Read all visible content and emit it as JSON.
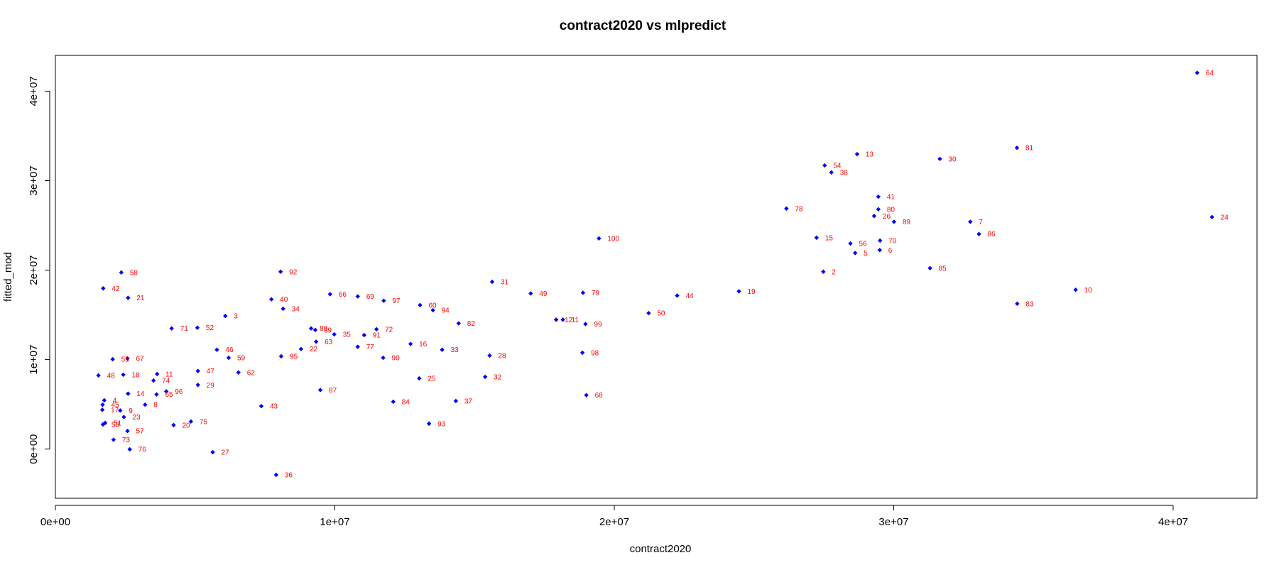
{
  "chart_data": {
    "type": "scatter",
    "title": "contract2020 vs mlpredict",
    "xlabel": "contract2020",
    "ylabel": "fitted_mod",
    "xlim": [
      0,
      43000000
    ],
    "ylim": [
      -5500000,
      44000000
    ],
    "x_ticks": [
      0,
      10000000,
      20000000,
      30000000,
      40000000
    ],
    "x_tick_labels": [
      "0e+00",
      "1e+07",
      "2e+07",
      "3e+07",
      "4e+07"
    ],
    "y_ticks": [
      0,
      10000000,
      20000000,
      30000000,
      40000000
    ],
    "y_tick_labels": [
      "0e+00",
      "1e+07",
      "2e+07",
      "3e+07",
      "4e+07"
    ],
    "grid": false,
    "point_color": "#0000ff",
    "label_color": "#ff0000",
    "points": [
      {
        "label": "64",
        "x": 40860000,
        "y": 42050000
      },
      {
        "label": "13",
        "x": 28690000,
        "y": 32960000
      },
      {
        "label": "81",
        "x": 34410000,
        "y": 33670000
      },
      {
        "label": "30",
        "x": 31650000,
        "y": 32430000
      },
      {
        "label": "54",
        "x": 27530000,
        "y": 31700000
      },
      {
        "label": "38",
        "x": 27770000,
        "y": 30920000
      },
      {
        "label": "41",
        "x": 29450000,
        "y": 28200000
      },
      {
        "label": "78",
        "x": 26160000,
        "y": 26880000
      },
      {
        "label": "80",
        "x": 29450000,
        "y": 26800000
      },
      {
        "label": "26",
        "x": 29300000,
        "y": 26050000
      },
      {
        "label": "89",
        "x": 30010000,
        "y": 25400000
      },
      {
        "label": "7",
        "x": 32740000,
        "y": 25400000
      },
      {
        "label": "24",
        "x": 41390000,
        "y": 25930000
      },
      {
        "label": "86",
        "x": 33050000,
        "y": 24030000
      },
      {
        "label": "15",
        "x": 27240000,
        "y": 23620000
      },
      {
        "label": "100",
        "x": 19450000,
        "y": 23540000
      },
      {
        "label": "70",
        "x": 29510000,
        "y": 23300000
      },
      {
        "label": "56",
        "x": 28450000,
        "y": 22970000
      },
      {
        "label": "6",
        "x": 29500000,
        "y": 22240000
      },
      {
        "label": "5",
        "x": 28620000,
        "y": 21910000
      },
      {
        "label": "85",
        "x": 31300000,
        "y": 20220000
      },
      {
        "label": "2",
        "x": 27480000,
        "y": 19820000
      },
      {
        "label": "58",
        "x": 2360000,
        "y": 19740000
      },
      {
        "label": "92",
        "x": 8060000,
        "y": 19820000
      },
      {
        "label": "31",
        "x": 15630000,
        "y": 18690000
      },
      {
        "label": "42",
        "x": 1710000,
        "y": 17960000
      },
      {
        "label": "10",
        "x": 36510000,
        "y": 17800000
      },
      {
        "label": "49",
        "x": 17010000,
        "y": 17390000
      },
      {
        "label": "79",
        "x": 18880000,
        "y": 17470000
      },
      {
        "label": "19",
        "x": 24460000,
        "y": 17630000
      },
      {
        "label": "66",
        "x": 9830000,
        "y": 17310000
      },
      {
        "label": "69",
        "x": 10820000,
        "y": 17060000
      },
      {
        "label": "44",
        "x": 22250000,
        "y": 17150000
      },
      {
        "label": "21",
        "x": 2600000,
        "y": 16900000
      },
      {
        "label": "40",
        "x": 7730000,
        "y": 16740000
      },
      {
        "label": "97",
        "x": 11750000,
        "y": 16580000
      },
      {
        "label": "60",
        "x": 13050000,
        "y": 16090000
      },
      {
        "label": "83",
        "x": 34420000,
        "y": 16250000
      },
      {
        "label": "34",
        "x": 8150000,
        "y": 15680000
      },
      {
        "label": "94",
        "x": 13510000,
        "y": 15520000
      },
      {
        "label": "50",
        "x": 21230000,
        "y": 15190000
      },
      {
        "label": "3",
        "x": 6080000,
        "y": 14870000
      },
      {
        "label": "12",
        "x": 17920000,
        "y": 14460000
      },
      {
        "label": "11",
        "x": 18160000,
        "y": 14460000
      },
      {
        "label": "82",
        "x": 14430000,
        "y": 14050000
      },
      {
        "label": "99",
        "x": 18970000,
        "y": 13970000
      },
      {
        "label": "71",
        "x": 4160000,
        "y": 13480000
      },
      {
        "label": "52",
        "x": 5080000,
        "y": 13560000
      },
      {
        "label": "88",
        "x": 9150000,
        "y": 13480000
      },
      {
        "label": "39",
        "x": 9300000,
        "y": 13310000
      },
      {
        "label": "72",
        "x": 11490000,
        "y": 13390000
      },
      {
        "label": "35",
        "x": 9980000,
        "y": 12820000
      },
      {
        "label": "91",
        "x": 11050000,
        "y": 12740000
      },
      {
        "label": "63",
        "x": 9330000,
        "y": 12000000
      },
      {
        "label": "16",
        "x": 12710000,
        "y": 11750000
      },
      {
        "label": "77",
        "x": 10820000,
        "y": 11430000
      },
      {
        "label": "22",
        "x": 8790000,
        "y": 11180000
      },
      {
        "label": "46",
        "x": 5780000,
        "y": 11100000
      },
      {
        "label": "33",
        "x": 13840000,
        "y": 11100000
      },
      {
        "label": "98",
        "x": 18860000,
        "y": 10770000
      },
      {
        "label": "28",
        "x": 15540000,
        "y": 10450000
      },
      {
        "label": "95",
        "x": 8080000,
        "y": 10370000
      },
      {
        "label": "90",
        "x": 11730000,
        "y": 10200000
      },
      {
        "label": "59",
        "x": 6200000,
        "y": 10200000
      },
      {
        "label": "55",
        "x": 2050000,
        "y": 10040000
      },
      {
        "label": "67",
        "x": 2580000,
        "y": 10120000
      },
      {
        "label": "47",
        "x": 5100000,
        "y": 8720000
      },
      {
        "label": "62",
        "x": 6550000,
        "y": 8560000
      },
      {
        "label": "11",
        "x": 3640000,
        "y": 8390000
      },
      {
        "label": "48",
        "x": 1540000,
        "y": 8230000
      },
      {
        "label": "18",
        "x": 2430000,
        "y": 8310000
      },
      {
        "label": "32",
        "x": 15380000,
        "y": 8070000
      },
      {
        "label": "25",
        "x": 13020000,
        "y": 7900000
      },
      {
        "label": "74",
        "x": 3510000,
        "y": 7660000
      },
      {
        "label": "29",
        "x": 5100000,
        "y": 7170000
      },
      {
        "label": "87",
        "x": 9480000,
        "y": 6600000
      },
      {
        "label": "96",
        "x": 3970000,
        "y": 6440000
      },
      {
        "label": "14",
        "x": 2600000,
        "y": 6190000
      },
      {
        "label": "65",
        "x": 3620000,
        "y": 6110000
      },
      {
        "label": "68",
        "x": 19000000,
        "y": 6030000
      },
      {
        "label": "4",
        "x": 1750000,
        "y": 5450000
      },
      {
        "label": "37",
        "x": 14330000,
        "y": 5370000
      },
      {
        "label": "84",
        "x": 12090000,
        "y": 5290000
      },
      {
        "label": "8",
        "x": 3210000,
        "y": 4960000
      },
      {
        "label": "45",
        "x": 1690000,
        "y": 4960000
      },
      {
        "label": "43",
        "x": 7370000,
        "y": 4800000
      },
      {
        "label": "17",
        "x": 1680000,
        "y": 4390000
      },
      {
        "label": "9",
        "x": 2320000,
        "y": 4310000
      },
      {
        "label": "23",
        "x": 2450000,
        "y": 3580000
      },
      {
        "label": "75",
        "x": 4850000,
        "y": 3080000
      },
      {
        "label": "93",
        "x": 13370000,
        "y": 2840000
      },
      {
        "label": "51",
        "x": 1780000,
        "y": 2920000
      },
      {
        "label": "20",
        "x": 4230000,
        "y": 2680000
      },
      {
        "label": "53",
        "x": 1700000,
        "y": 2750000
      },
      {
        "label": "57",
        "x": 2580000,
        "y": 2020000
      },
      {
        "label": "73",
        "x": 2080000,
        "y": 1040000
      },
      {
        "label": "76",
        "x": 2660000,
        "y": -30000
      },
      {
        "label": "27",
        "x": 5630000,
        "y": -350000
      },
      {
        "label": "36",
        "x": 7900000,
        "y": -2880000
      }
    ]
  }
}
